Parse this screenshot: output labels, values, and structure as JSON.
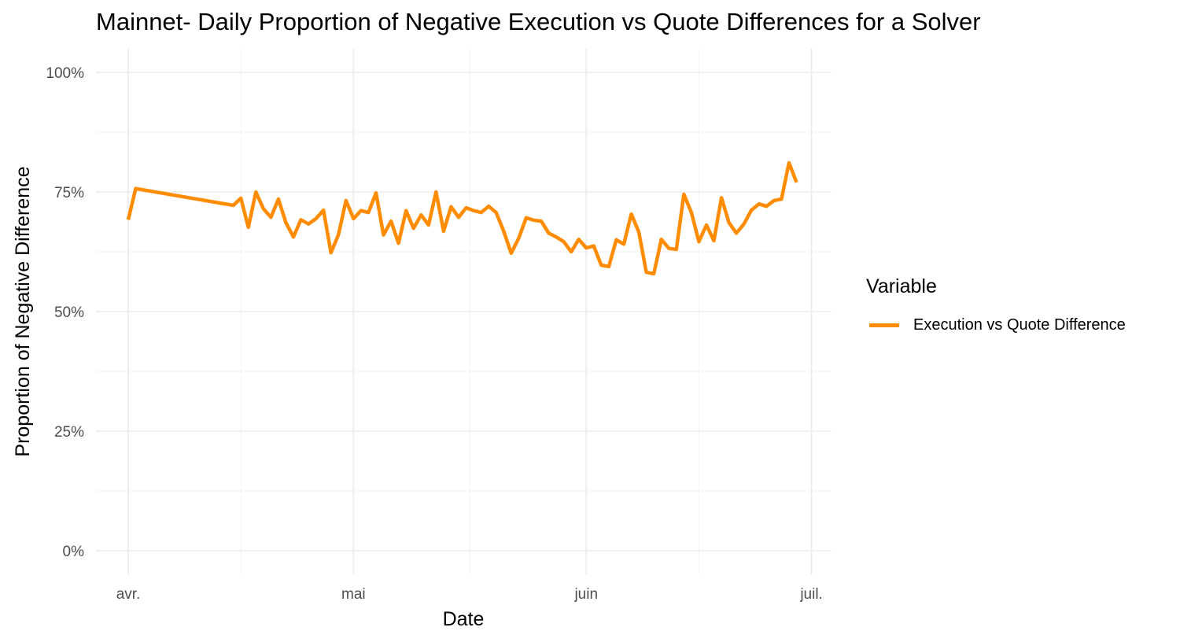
{
  "chart_data": {
    "type": "line",
    "title": "Mainnet- Daily Proportion of Negative Execution vs Quote Differences for a Solver",
    "xlabel": "Date",
    "ylabel": "Proportion of Negative Difference",
    "x_ticks": [
      {
        "label": "avr.",
        "date": "04-01"
      },
      {
        "label": "mai",
        "date": "05-01"
      },
      {
        "label": "juin",
        "date": "06-01"
      },
      {
        "label": "juil.",
        "date": "07-01"
      }
    ],
    "y_ticks": [
      {
        "label": "0%",
        "value": 0
      },
      {
        "label": "25%",
        "value": 25
      },
      {
        "label": "50%",
        "value": 50
      },
      {
        "label": "75%",
        "value": 75
      },
      {
        "label": "100%",
        "value": 100
      }
    ],
    "ylim": [
      0,
      100
    ],
    "xlim_days_from_apr1": [
      -1.5,
      90.5
    ],
    "grid": true,
    "legend": {
      "title": "Variable",
      "position": "right"
    },
    "series": [
      {
        "name": "Execution vs Quote Difference",
        "color": "#FF8C00",
        "x_days_from_apr1": [
          0,
          1,
          14,
          15,
          16,
          17,
          18,
          19,
          20,
          21,
          22,
          23,
          24,
          25,
          26,
          27,
          28,
          29,
          30,
          31,
          32,
          33,
          34,
          35,
          36,
          37,
          38,
          39,
          40,
          41,
          42,
          43,
          44,
          45,
          46,
          47,
          48,
          49,
          50,
          51,
          52,
          53,
          54,
          55,
          56,
          57,
          58,
          59,
          60,
          61,
          62,
          63,
          64,
          65,
          66,
          67,
          68,
          69,
          70,
          71,
          72,
          73,
          74,
          75,
          76,
          77,
          78,
          79,
          80,
          81,
          82,
          83,
          84,
          85,
          86,
          87,
          88,
          89
        ],
        "dates": [
          "04-01",
          "04-02",
          "04-15",
          "04-16",
          "04-17",
          "04-18",
          "04-19",
          "04-20",
          "04-21",
          "04-22",
          "04-23",
          "04-24",
          "04-25",
          "04-26",
          "04-27",
          "04-28",
          "04-29",
          "04-30",
          "05-01",
          "05-02",
          "05-03",
          "05-04",
          "05-05",
          "05-06",
          "05-07",
          "05-08",
          "05-09",
          "05-10",
          "05-11",
          "05-12",
          "05-13",
          "05-14",
          "05-15",
          "05-16",
          "05-17",
          "05-18",
          "05-19",
          "05-20",
          "05-21",
          "05-22",
          "05-23",
          "05-24",
          "05-25",
          "05-26",
          "05-27",
          "05-28",
          "05-29",
          "05-30",
          "05-31",
          "06-01",
          "06-02",
          "06-03",
          "06-04",
          "06-05",
          "06-06",
          "06-07",
          "06-08",
          "06-09",
          "06-10",
          "06-11",
          "06-12",
          "06-13",
          "06-14",
          "06-15",
          "06-16",
          "06-17",
          "06-18",
          "06-19",
          "06-20",
          "06-21",
          "06-22",
          "06-23",
          "06-24",
          "06-25",
          "06-26",
          "06-27",
          "06-28",
          "06-29"
        ],
        "values": [
          69.2,
          75.7,
          72.2,
          73.7,
          67.6,
          75.0,
          71.5,
          69.7,
          73.5,
          68.6,
          65.6,
          69.2,
          68.3,
          69.4,
          71.2,
          62.3,
          66.1,
          73.2,
          69.4,
          71.1,
          70.7,
          74.8,
          66.0,
          68.9,
          64.3,
          71.1,
          67.4,
          70.2,
          68.1,
          75.0,
          66.8,
          71.9,
          69.7,
          71.7,
          71.1,
          70.7,
          72.0,
          70.7,
          66.8,
          62.2,
          65.3,
          69.6,
          69.1,
          68.9,
          66.4,
          65.6,
          64.6,
          62.5,
          65.1,
          63.3,
          63.7,
          59.7,
          59.4,
          65.0,
          64.1,
          70.4,
          66.6,
          58.2,
          57.9,
          65.1,
          63.2,
          63.0,
          74.5,
          70.7,
          64.6,
          68.1,
          64.8,
          73.8,
          68.6,
          66.4,
          68.3,
          71.2,
          72.5,
          72.0,
          73.2,
          73.5,
          81.1,
          77.0
        ]
      }
    ]
  }
}
